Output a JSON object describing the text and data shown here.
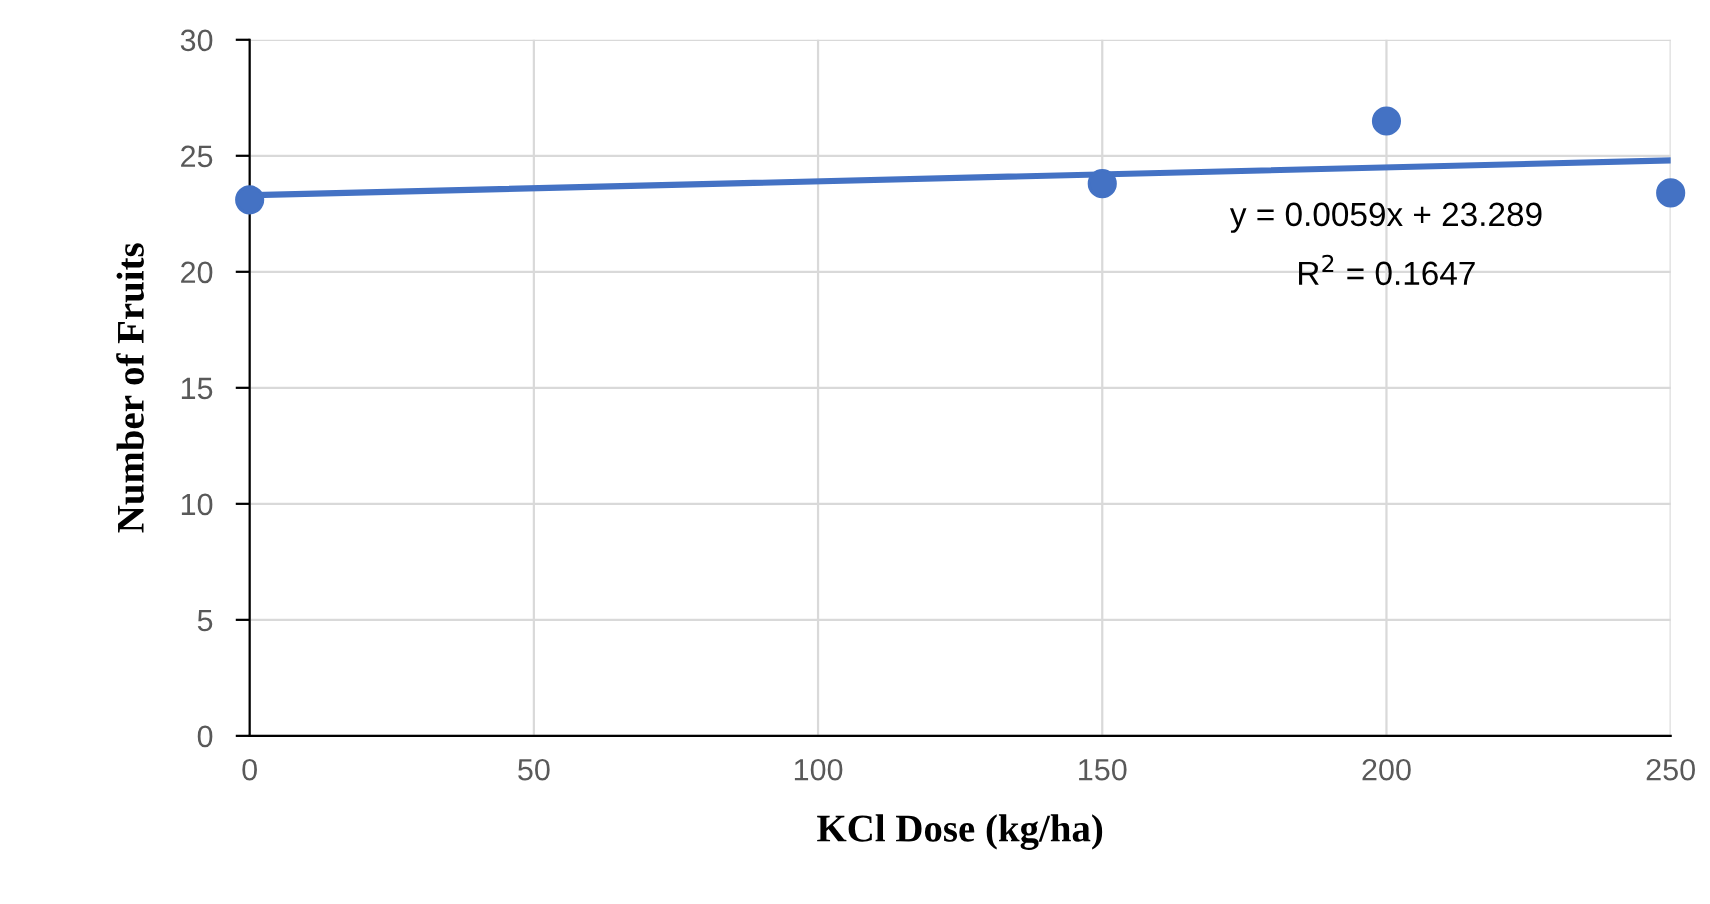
{
  "chart_data": {
    "type": "scatter",
    "xlabel": "KCl Dose (kg/ha)",
    "ylabel": "Number of Fruits",
    "x": [
      0,
      150,
      200,
      250
    ],
    "series": [
      {
        "color": "#4472c4",
        "values": [
          23.1,
          23.8,
          26.5,
          23.4
        ],
        "marker": "circle"
      },
      {
        "type": "line",
        "color": "#4472c4",
        "x": [
          0,
          250
        ],
        "values": [
          23.3,
          24.8
        ],
        "line_style": "solid"
      }
    ],
    "annotations": [
      "y = 0.0059x + 23.289",
      "R$^{2}$ = 0.1647"
    ],
    "xlim": [
      0,
      250
    ],
    "xticks": [
      0,
      50,
      100,
      150,
      200,
      250
    ],
    "ylim": [
      0,
      30
    ],
    "yticks": [
      0,
      5,
      10,
      15,
      20,
      25,
      30
    ],
    "grid": true
  }
}
